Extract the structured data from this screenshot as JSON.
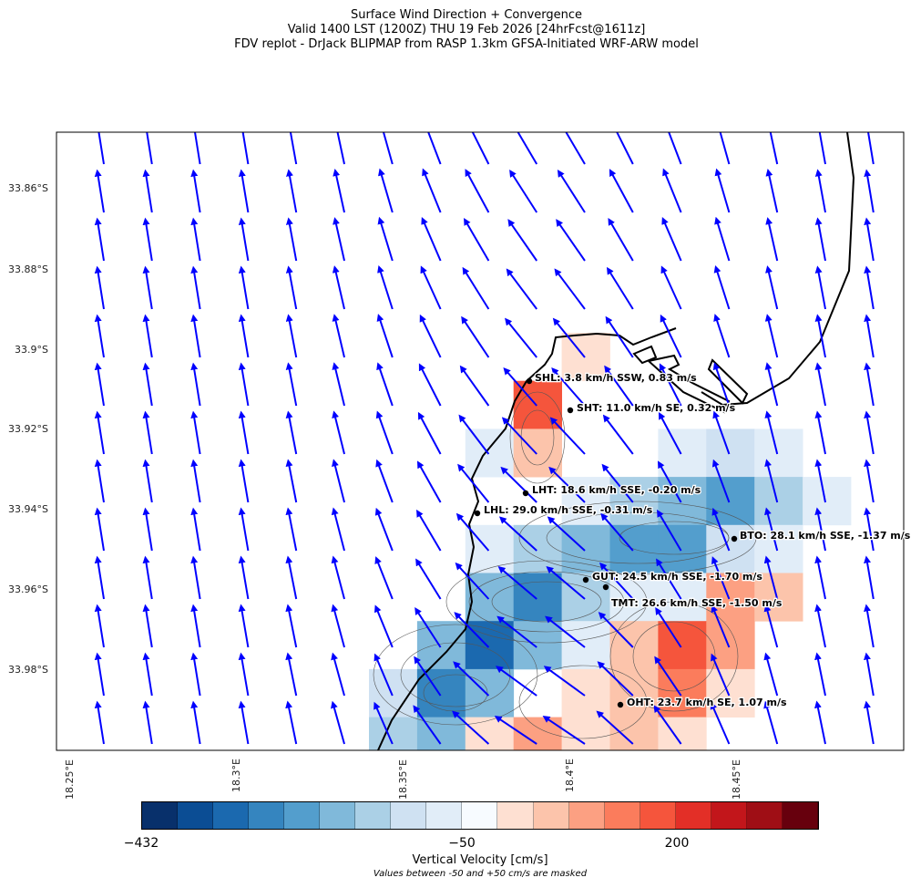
{
  "title": {
    "line1": "Surface Wind Direction + Convergence",
    "line2": "Valid 1400 LST (1200Z) THU 19 Feb 2026 [24hrFcst@1611z]",
    "line3": "FDV replot - DrJack BLIPMAP from RASP 1.3km GFSA-Initiated WRF-ARW model"
  },
  "axes": {
    "y_ticks": [
      "33.86°S",
      "33.88°S",
      "33.9°S",
      "33.92°S",
      "33.94°S",
      "33.96°S",
      "33.98°S"
    ],
    "x_ticks": [
      "18.25°E",
      "18.3°E",
      "18.35°E",
      "18.4°E",
      "18.45°E"
    ]
  },
  "stations": [
    {
      "label": "SHL: 3.8 km/h SSW, 0.83 m/s"
    },
    {
      "label": "SHT: 11.0 km/h SE, 0.32 m/s"
    },
    {
      "label": "LHT: 18.6 km/h SSE, -0.20 m/s"
    },
    {
      "label": "LHL: 29.0 km/h SSE, -0.31 m/s"
    },
    {
      "label": "BTO: 28.1 km/h SSE, -1.37 m/s"
    },
    {
      "label": "GUT: 24.5 km/h SSE, -1.70 m/s"
    },
    {
      "label": "TMT: 26.6 km/h SSE, -1.50 m/s"
    },
    {
      "label": "OHT: 23.7 km/h SE, 1.07 m/s"
    }
  ],
  "colorbar": {
    "label": "Vertical Velocity [cm/s]",
    "note": "Values between -50 and +50 cm/s are masked",
    "tick_labels": [
      "−432",
      "−50",
      "200"
    ],
    "colors": [
      "#08306b",
      "#0b4d94",
      "#1b69af",
      "#3585bf",
      "#539ecd",
      "#80b9da",
      "#abd0e6",
      "#cfe1f2",
      "#e1edf8",
      "#f7fbff",
      "#fee0d2",
      "#fcc4ab",
      "#fca082",
      "#fb7c5c",
      "#f5553c",
      "#e32f27",
      "#c2161b",
      "#9f0e15",
      "#67000d"
    ]
  },
  "vertical_velocity_levels": [
    [
      null,
      null,
      null,
      null,
      10,
      null,
      null,
      null,
      null,
      null
    ],
    [
      null,
      null,
      null,
      14,
      null,
      null,
      null,
      null,
      null,
      null
    ],
    [
      null,
      null,
      8,
      11,
      null,
      null,
      8,
      7,
      8,
      null
    ],
    [
      null,
      null,
      null,
      null,
      8,
      6,
      5,
      4,
      6,
      8
    ],
    [
      null,
      null,
      8,
      6,
      5,
      4,
      4,
      7,
      8,
      null
    ],
    [
      null,
      null,
      5,
      3,
      6,
      8,
      8,
      12,
      11,
      null
    ],
    [
      null,
      5,
      2,
      5,
      8,
      11,
      14,
      12,
      null,
      null
    ],
    [
      7,
      3,
      5,
      null,
      10,
      11,
      13,
      10,
      null,
      null
    ],
    [
      6,
      5,
      10,
      12,
      10,
      11,
      10,
      null,
      null,
      null
    ]
  ],
  "colors": {
    "wind_arrow": "#0000ff",
    "coastline": "#000000",
    "contour": "#555555"
  }
}
